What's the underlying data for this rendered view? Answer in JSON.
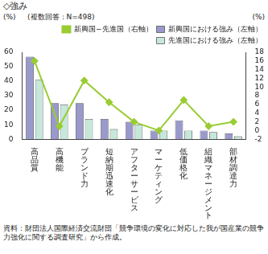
{
  "chart_data": {
    "type": "bar",
    "title": "◇強み",
    "annotations": [
      "(複数回答：N=498)"
    ],
    "y_label": "(%)",
    "y2_label": "(%)",
    "source": "資料：財団法人国際経済交流財団「競争環境の変化に対応した我が国産業の競争力強化に関する調査研究」から作成。",
    "categories": [
      "高品質",
      "高機能",
      "ブランド力",
      "短納期迅速化",
      "アフターサービス",
      "マーケティング",
      "低価格化",
      "組織マネージメント",
      "部材調達力"
    ],
    "series": [
      {
        "name": "新興国における強み（左軸）",
        "color": "#9999cc",
        "values": [
          57,
          25,
          25,
          14,
          12,
          6,
          13,
          6,
          4
        ]
      },
      {
        "name": "先進国における強み（左軸）",
        "color": "#c6e8da",
        "values": [
          41,
          24,
          14,
          7,
          10,
          6,
          6,
          5,
          2
        ]
      },
      {
        "name": "新興国−先進国（右軸）",
        "color": "#99cc33",
        "type": "line",
        "axis": "y2",
        "marker": "diamond",
        "values": [
          16,
          1,
          11.5,
          6.5,
          2,
          0,
          7,
          1,
          2
        ]
      }
    ],
    "ylim": [
      0,
      60
    ],
    "yticks": [
      0,
      10,
      20,
      30,
      40,
      50,
      60
    ],
    "y2lim": [
      -2,
      18
    ],
    "y2ticks": [
      -2,
      0,
      2,
      4,
      6,
      8,
      10,
      12,
      14,
      16,
      18
    ],
    "grid": false,
    "legend": "top-right"
  }
}
